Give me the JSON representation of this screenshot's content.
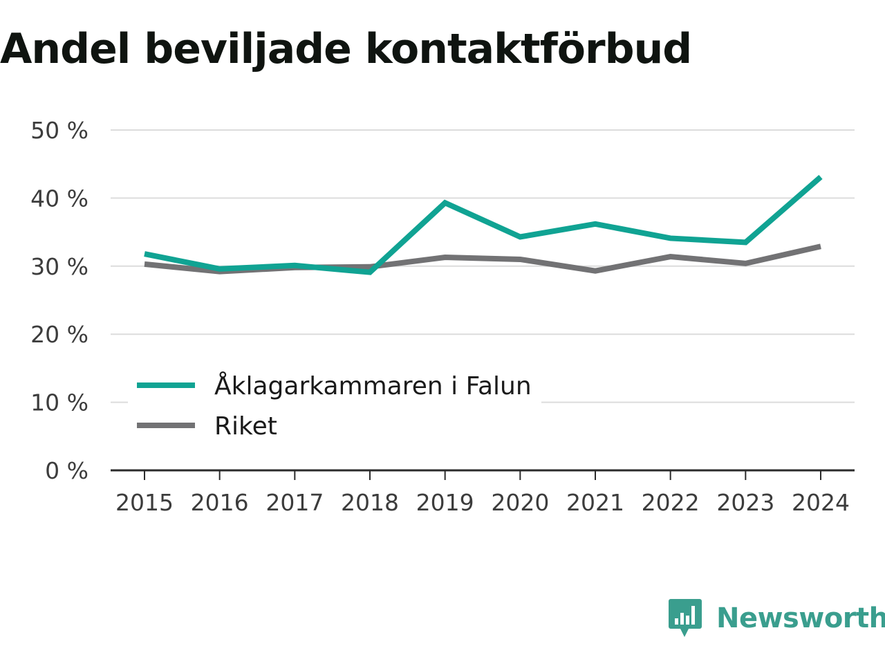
{
  "chart_data": {
    "type": "line",
    "title": "Andel beviljade kontaktförbud",
    "xlabel": "",
    "ylabel": "",
    "x": [
      "2015",
      "2016",
      "2017",
      "2018",
      "2019",
      "2020",
      "2021",
      "2022",
      "2023",
      "2024"
    ],
    "ylim": [
      0,
      50
    ],
    "yticks": [
      0,
      10,
      20,
      30,
      40,
      50
    ],
    "ytick_labels": [
      "0 %",
      "10 %",
      "20 %",
      "30 %",
      "40 %",
      "50 %"
    ],
    "grid": true,
    "legend_position": "lower-left",
    "series": [
      {
        "name": "Åklagarkammaren i Falun",
        "color": "#10a393",
        "values": [
          31.8,
          29.6,
          30.1,
          29.1,
          39.3,
          34.3,
          36.2,
          34.1,
          33.5,
          43.1
        ]
      },
      {
        "name": "Riket",
        "color": "#727274",
        "values": [
          30.3,
          29.2,
          29.8,
          29.9,
          31.3,
          31.0,
          29.3,
          31.4,
          30.4,
          32.9
        ]
      }
    ]
  },
  "brand": {
    "name": "Newsworthy",
    "color": "#3a9e8e",
    "icon": "newsworthy-logo-icon"
  }
}
